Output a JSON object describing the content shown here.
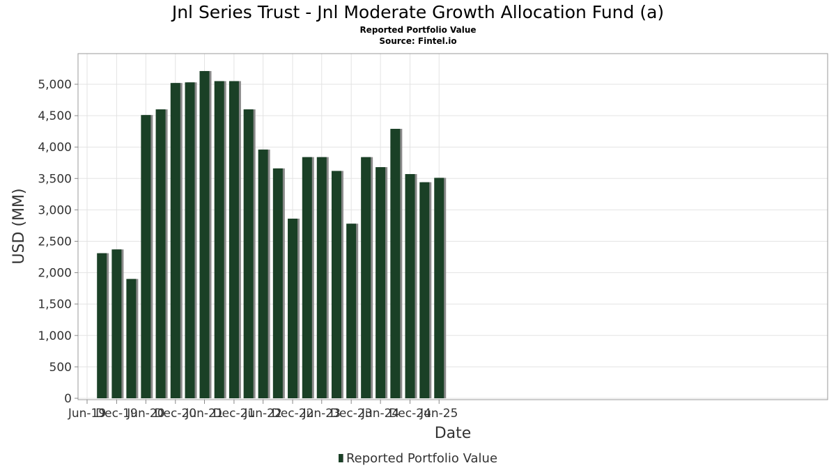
{
  "chart_data": {
    "type": "bar",
    "title": "Jnl Series Trust - Jnl Moderate Growth Allocation Fund (a)",
    "subtitle": "Reported Portfolio Value",
    "source": "Source: Fintel.io",
    "xlabel": "Date",
    "ylabel": "USD (MM)",
    "ylim": [
      0,
      5500
    ],
    "yticks": [
      "0",
      "500",
      "1,000",
      "1,500",
      "2,000",
      "2,500",
      "3,000",
      "3,500",
      "4,000",
      "4,500",
      "5,000"
    ],
    "xticks": [
      "Jun-19",
      "Dec-19",
      "Jun-20",
      "Dec-20",
      "Jun-21",
      "Dec-21",
      "Jun-22",
      "Dec-22",
      "Jun-23",
      "Dec-23",
      "Jun-24",
      "Dec-24",
      "Jun-25"
    ],
    "legend": "Reported Portfolio Value",
    "legend_position": "bottom",
    "grid": true,
    "color": "#1a4026",
    "series": [
      {
        "name": "Reported Portfolio Value",
        "x": [
          "2019-09-30",
          "2019-12-31",
          "2020-03-31",
          "2020-06-30",
          "2020-09-30",
          "2020-12-31",
          "2021-03-31",
          "2021-06-30",
          "2021-09-30",
          "2021-12-31",
          "2022-03-31",
          "2022-06-30",
          "2022-09-30",
          "2022-12-31",
          "2023-03-31",
          "2023-06-30",
          "2023-09-30",
          "2023-12-31",
          "2024-03-31",
          "2024-06-30",
          "2024-09-30",
          "2024-12-31",
          "2025-03-31",
          "2025-06-30"
        ],
        "values": [
          2310,
          2370,
          1900,
          4510,
          4600,
          5020,
          5030,
          5210,
          5050,
          5050,
          4600,
          3960,
          3660,
          2860,
          3840,
          3840,
          3620,
          2780,
          3840,
          3680,
          4290,
          3570,
          3440,
          3510
        ]
      }
    ]
  }
}
